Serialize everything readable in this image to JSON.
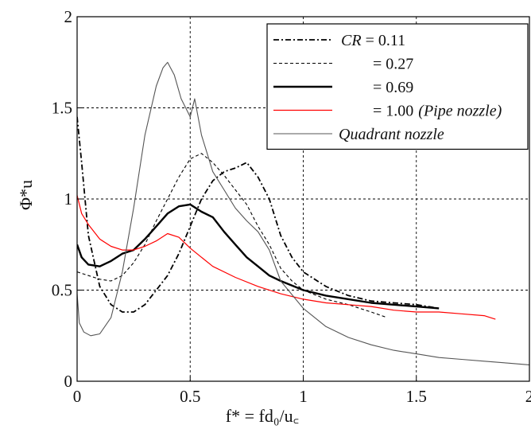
{
  "chart_data": {
    "type": "line",
    "xlim": [
      0,
      2
    ],
    "ylim": [
      0,
      2
    ],
    "x_ticks": [
      "0",
      "0.5",
      "1",
      "1.5",
      "2"
    ],
    "y_ticks": [
      "0",
      "0.5",
      "1",
      "1.5",
      "2"
    ],
    "xlabel": "f* = fd₀/u꜀",
    "ylabel": "Φ*u",
    "grid": true,
    "legend_position": "top-right",
    "series": [
      {
        "name": "CR = 0.11",
        "legend_label": "CR = 0.11",
        "color": "#000000",
        "style": "dashdot",
        "x": [
          0,
          0.02,
          0.05,
          0.1,
          0.15,
          0.2,
          0.25,
          0.3,
          0.35,
          0.4,
          0.45,
          0.5,
          0.55,
          0.6,
          0.65,
          0.7,
          0.75,
          0.8,
          0.85,
          0.9,
          0.95,
          1.0,
          1.1,
          1.2,
          1.3,
          1.4,
          1.5,
          1.6
        ],
        "y": [
          1.45,
          1.2,
          0.8,
          0.52,
          0.42,
          0.38,
          0.38,
          0.42,
          0.5,
          0.58,
          0.7,
          0.85,
          1.0,
          1.1,
          1.15,
          1.17,
          1.2,
          1.12,
          1.0,
          0.8,
          0.68,
          0.6,
          0.52,
          0.47,
          0.44,
          0.43,
          0.42,
          0.4
        ]
      },
      {
        "name": "= 0.27",
        "legend_label": "= 0.27",
        "color": "#000000",
        "style": "dashed",
        "x": [
          0,
          0.05,
          0.1,
          0.15,
          0.2,
          0.25,
          0.3,
          0.35,
          0.4,
          0.45,
          0.5,
          0.55,
          0.6,
          0.65,
          0.7,
          0.75,
          0.8,
          0.85,
          0.9,
          0.95,
          1.0,
          1.1,
          1.2,
          1.3,
          1.37
        ],
        "y": [
          0.6,
          0.58,
          0.56,
          0.55,
          0.58,
          0.65,
          0.75,
          0.88,
          1.0,
          1.12,
          1.22,
          1.25,
          1.2,
          1.13,
          1.05,
          0.97,
          0.85,
          0.75,
          0.62,
          0.55,
          0.5,
          0.45,
          0.42,
          0.38,
          0.35
        ]
      },
      {
        "name": "= 0.69",
        "legend_label": "= 0.69",
        "color": "#000000",
        "style": "solid-thick",
        "x": [
          0,
          0.02,
          0.05,
          0.1,
          0.15,
          0.2,
          0.25,
          0.3,
          0.35,
          0.4,
          0.45,
          0.5,
          0.55,
          0.6,
          0.65,
          0.7,
          0.75,
          0.8,
          0.85,
          0.9,
          1.0,
          1.1,
          1.2,
          1.3,
          1.4,
          1.5,
          1.6
        ],
        "y": [
          0.75,
          0.68,
          0.64,
          0.63,
          0.66,
          0.7,
          0.72,
          0.78,
          0.85,
          0.92,
          0.96,
          0.97,
          0.93,
          0.9,
          0.82,
          0.75,
          0.68,
          0.63,
          0.58,
          0.55,
          0.5,
          0.47,
          0.45,
          0.43,
          0.42,
          0.41,
          0.4
        ]
      },
      {
        "name": "= 1.00 (Pipe nozzle)",
        "legend_label": "= 1.00",
        "legend_suffix": "(Pipe nozzle)",
        "color": "#ff0000",
        "style": "solid-thin",
        "x": [
          0,
          0.02,
          0.05,
          0.1,
          0.15,
          0.2,
          0.25,
          0.3,
          0.35,
          0.4,
          0.45,
          0.5,
          0.55,
          0.6,
          0.7,
          0.8,
          0.9,
          1.0,
          1.1,
          1.2,
          1.3,
          1.4,
          1.5,
          1.6,
          1.7,
          1.8,
          1.85
        ],
        "y": [
          1.02,
          0.92,
          0.86,
          0.78,
          0.74,
          0.72,
          0.72,
          0.74,
          0.77,
          0.81,
          0.79,
          0.73,
          0.68,
          0.63,
          0.57,
          0.52,
          0.48,
          0.45,
          0.43,
          0.42,
          0.41,
          0.39,
          0.38,
          0.38,
          0.37,
          0.36,
          0.34
        ]
      },
      {
        "name": "Quadrant nozzle",
        "legend_label": "Quadrant nozzle",
        "color": "#555555",
        "style": "solid-gray",
        "x": [
          0,
          0.01,
          0.03,
          0.06,
          0.1,
          0.15,
          0.2,
          0.25,
          0.3,
          0.35,
          0.38,
          0.4,
          0.43,
          0.46,
          0.5,
          0.52,
          0.55,
          0.6,
          0.65,
          0.7,
          0.75,
          0.8,
          0.85,
          0.9,
          1.0,
          1.1,
          1.2,
          1.3,
          1.4,
          1.5,
          1.6,
          1.7,
          1.8,
          1.9,
          2.0
        ],
        "y": [
          0.48,
          0.32,
          0.27,
          0.25,
          0.26,
          0.35,
          0.6,
          0.95,
          1.35,
          1.62,
          1.72,
          1.75,
          1.68,
          1.55,
          1.45,
          1.55,
          1.35,
          1.15,
          1.05,
          0.95,
          0.88,
          0.82,
          0.72,
          0.55,
          0.4,
          0.3,
          0.24,
          0.2,
          0.17,
          0.15,
          0.13,
          0.12,
          0.11,
          0.1,
          0.09
        ]
      }
    ]
  }
}
